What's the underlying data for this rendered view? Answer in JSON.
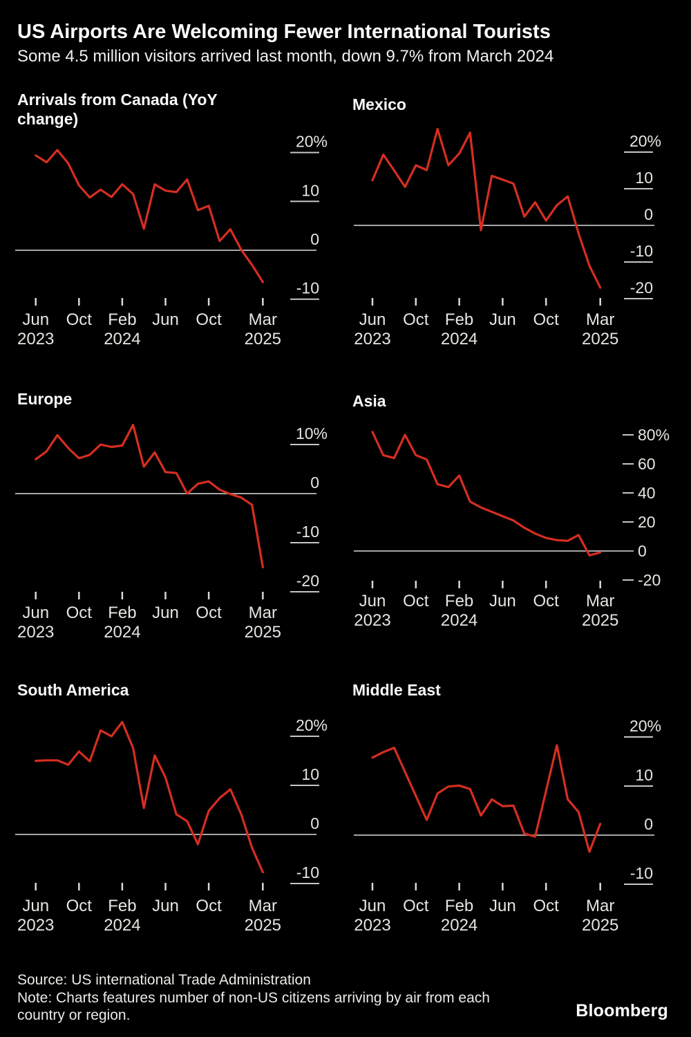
{
  "header": {
    "title": "US Airports Are Welcoming Fewer International Tourists",
    "subtitle": "Some 4.5 million visitors arrived last month, down 9.7% from March 2024"
  },
  "footer": {
    "source": "Source: US international Trade Administration",
    "note_line1": "Note: Charts features number of non-US citizens arriving by air from each",
    "note_line2": "country or region.",
    "brand": "Bloomberg"
  },
  "colors": {
    "background": "#000000",
    "line_red": "#d62e21",
    "zero_line": "#a6a6a6",
    "grid_dash": "#c6c6c3",
    "x_tick": "#d9d9d6",
    "axis_label": "#e7e5e0",
    "title_text": "#ffffff"
  },
  "chart_data": {
    "type": "line",
    "unit": "percent YoY change",
    "grid": "zero line plus short dash ticks",
    "legend_position": "none",
    "x_monthly": [
      "Jun 2023",
      "Jul 2023",
      "Aug 2023",
      "Sep 2023",
      "Oct 2023",
      "Nov 2023",
      "Dec 2023",
      "Jan 2024",
      "Feb 2024",
      "Mar 2024",
      "Apr 2024",
      "May 2024",
      "Jun 2024",
      "Jul 2024",
      "Aug 2024",
      "Sep 2024",
      "Oct 2024",
      "Nov 2024",
      "Dec 2024",
      "Jan 2025",
      "Feb 2025",
      "Mar 2025"
    ],
    "x_axis": {
      "month_labels": [
        "Jun",
        "Oct",
        "Feb",
        "Jun",
        "Oct",
        "Mar"
      ],
      "year_labels": [
        "2023",
        "2024",
        "2025"
      ]
    },
    "panels": [
      {
        "id": "canada",
        "title": "Arrivals from Canada (YoY change)",
        "y_tick_labels": [
          "20%",
          "10",
          "0",
          "-10"
        ],
        "y_tick_values": [
          20,
          10,
          0,
          -10
        ],
        "ylim": [
          -10,
          20
        ],
        "values": [
          19.4,
          18.0,
          20.5,
          17.8,
          13.3,
          10.8,
          12.4,
          10.9,
          13.5,
          11.5,
          4.4,
          13.5,
          12.2,
          11.9,
          14.5,
          8.2,
          9.1,
          1.9,
          4.3,
          0.1,
          -3.0,
          -6.5
        ]
      },
      {
        "id": "mexico",
        "title": "Mexico",
        "y_tick_labels": [
          "20%",
          "10",
          "0",
          "-10",
          "-20"
        ],
        "y_tick_values": [
          20,
          10,
          0,
          -10,
          -20
        ],
        "ylim": [
          -20,
          20
        ],
        "values": [
          12.3,
          19.3,
          15.0,
          10.5,
          16.4,
          15.1,
          26.3,
          16.4,
          19.6,
          25.3,
          -1.3,
          13.5,
          12.5,
          11.4,
          2.4,
          6.3,
          1.3,
          5.5,
          7.9,
          -2.2,
          -11.0,
          -17.0
        ]
      },
      {
        "id": "europe",
        "title": "Europe",
        "y_tick_labels": [
          "10%",
          "0",
          "-10",
          "-20"
        ],
        "y_tick_values": [
          10,
          0,
          -10,
          -20
        ],
        "ylim": [
          -20,
          10
        ],
        "values": [
          7.0,
          8.6,
          11.9,
          9.3,
          7.2,
          7.9,
          10.0,
          9.5,
          9.8,
          14.0,
          5.5,
          8.4,
          4.4,
          4.2,
          0.0,
          2.0,
          2.5,
          0.8,
          -0.1,
          -0.8,
          -2.3,
          -15.0
        ]
      },
      {
        "id": "asia",
        "title": "Asia",
        "y_tick_labels": [
          "80%",
          "60",
          "40",
          "20",
          "0",
          "-20"
        ],
        "y_tick_values": [
          80,
          60,
          40,
          20,
          0,
          -20
        ],
        "ylim": [
          -20,
          80
        ],
        "values": [
          82,
          66,
          64,
          80,
          66,
          63,
          46,
          44,
          52,
          34,
          30,
          27,
          24,
          21,
          16,
          12,
          9,
          7.5,
          7,
          11,
          -3,
          -1
        ]
      },
      {
        "id": "south_america",
        "title": "South America",
        "y_tick_labels": [
          "20%",
          "10",
          "0",
          "-10"
        ],
        "y_tick_values": [
          20,
          10,
          0,
          -10
        ],
        "ylim": [
          -10,
          20
        ],
        "values": [
          15.0,
          15.1,
          15.1,
          14.2,
          16.9,
          14.9,
          21.2,
          20.0,
          22.9,
          17.6,
          5.4,
          16.1,
          11.6,
          4.1,
          2.7,
          -2.0,
          4.8,
          7.4,
          9.2,
          4.1,
          -2.7,
          -7.7
        ]
      },
      {
        "id": "middle_east",
        "title": "Middle East",
        "y_tick_labels": [
          "20%",
          "10",
          "0",
          "-10"
        ],
        "y_tick_values": [
          20,
          10,
          0,
          -10
        ],
        "ylim": [
          -10,
          20
        ],
        "values": [
          15.8,
          16.9,
          17.8,
          12.9,
          8.0,
          3.1,
          8.5,
          9.9,
          10.1,
          9.4,
          4.0,
          7.3,
          5.9,
          6.0,
          0.3,
          -0.3,
          9.0,
          18.3,
          7.3,
          4.7,
          -3.4,
          2.3
        ]
      }
    ]
  }
}
